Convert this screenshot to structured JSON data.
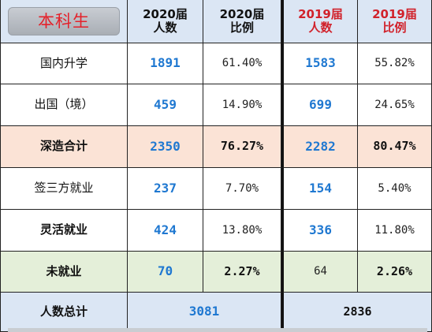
{
  "header": {
    "badge_label": "本科生",
    "col_2020_count": [
      "2020届",
      "人数"
    ],
    "col_2020_ratio": [
      "2020届",
      "比例"
    ],
    "col_2019_count": [
      "2019届",
      "人数"
    ],
    "col_2019_ratio": [
      "2019届",
      "比例"
    ]
  },
  "rows": [
    {
      "label": "国内升学",
      "n2020": "1891",
      "p2020": "61.40%",
      "n2019": "1583",
      "p2019": "55.82%"
    },
    {
      "label": "出国（境）",
      "n2020": "459",
      "p2020": "14.90%",
      "n2019": "699",
      "p2019": "24.65%"
    },
    {
      "label": "深造合计",
      "n2020": "2350",
      "p2020": "76.27%",
      "n2019": "2282",
      "p2019": "80.47%"
    },
    {
      "label": "签三方就业",
      "n2020": "237",
      "p2020": "7.70%",
      "n2019": "154",
      "p2019": "5.40%"
    },
    {
      "label": "灵活就业",
      "n2020": "424",
      "p2020": "13.80%",
      "n2019": "336",
      "p2019": "11.80%"
    },
    {
      "label": "未就业",
      "n2020": "70",
      "p2020": "2.27%",
      "n2019": "64",
      "p2019": "2.26%"
    }
  ],
  "total": {
    "label": "人数总计",
    "t2020": "3081",
    "t2019": "2836"
  },
  "colors": {
    "header_bg": "#dbe6f4",
    "peach_row": "#fbe3d6",
    "green_row": "#e4efd9",
    "blue_num": "#1f78d1",
    "red_header": "#d1222b"
  }
}
